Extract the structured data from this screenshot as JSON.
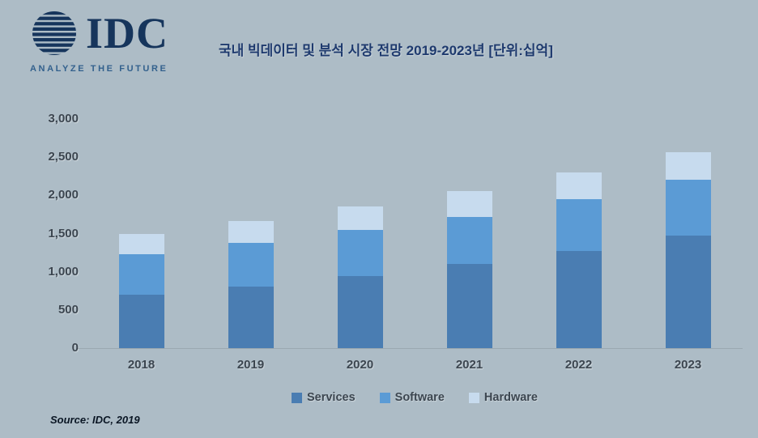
{
  "title": "국내 빅데이터 및 분석 시장 전망 2019-2023년 [단위:십억]",
  "logo": {
    "text": "IDC",
    "tagline": "ANALYZE THE FUTURE"
  },
  "source": "Source: IDC, 2019",
  "colors": {
    "background": "#adbcc6",
    "title": "#1e3a6e",
    "axis_text": "#3c4650",
    "logo": "#16355c",
    "tagline": "#33618d",
    "services": "#4a7db2",
    "software": "#5b9bd5",
    "hardware": "#c7dbee"
  },
  "chart_data": {
    "type": "bar",
    "stacked": true,
    "title": "국내 빅데이터 및 분석 시장 전망 2019-2023년 [단위:십억]",
    "categories": [
      "2018",
      "2019",
      "2020",
      "2021",
      "2022",
      "2023"
    ],
    "series": [
      {
        "name": "Services",
        "values": [
          700,
          810,
          940,
          1100,
          1270,
          1470
        ]
      },
      {
        "name": "Software",
        "values": [
          530,
          570,
          610,
          620,
          680,
          730
        ]
      },
      {
        "name": "Hardware",
        "values": [
          270,
          280,
          310,
          340,
          350,
          370
        ]
      }
    ],
    "xlabel": "",
    "ylabel": "",
    "ylim": [
      0,
      3000
    ],
    "yticks": [
      0,
      500,
      1000,
      1500,
      2000,
      2500,
      3000
    ],
    "ytick_labels": [
      "0",
      "500",
      "1,000",
      "1,500",
      "2,000",
      "2,500",
      "3,000"
    ],
    "legend": [
      "Services",
      "Software",
      "Hardware"
    ],
    "legend_position": "bottom",
    "grid": false
  }
}
